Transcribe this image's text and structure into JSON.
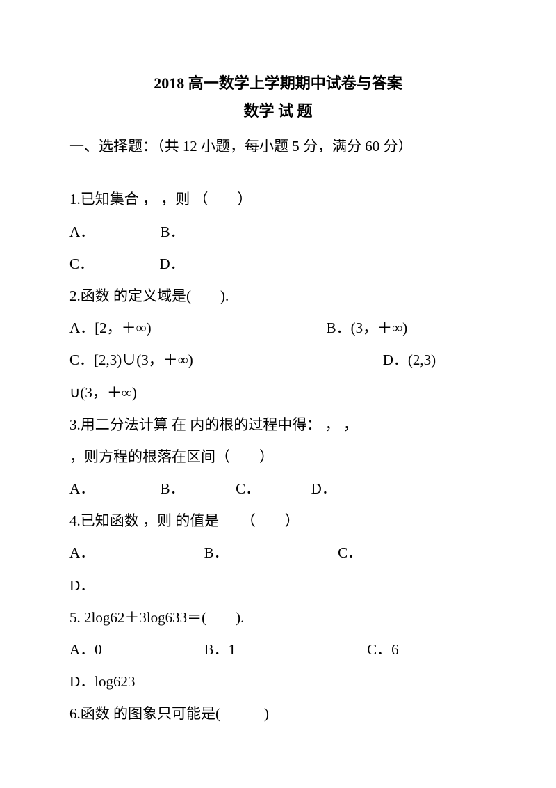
{
  "title": "2018 高一数学上学期期中试卷与答案",
  "subtitle": "数学  试  题",
  "section_header": "一、选择题：（共 12 小题，每小题 5 分，满分 60 分）",
  "q1": {
    "stem": "1.已知集合  ，  ，则  （　　）",
    "line2": "A．　　　　　B．",
    "line3": "  C．　　　　　D．"
  },
  "q2": {
    "stem": "2.函数  的定义域是(　　).",
    "line2": "A．[2，＋∞)　　　　　　　　　　　　B．(3，＋∞)",
    "line3": "C．[2,3)∪(3，＋∞)　　　　　　　　　　　　　D．(2,3)",
    "line4": "∪(3，＋∞)"
  },
  "q3": {
    "stem": "3.用二分法计算  在  内的根的过程中得：  ，  ，",
    "line2": "  ，则方程的根落在区间（　　）",
    "line3": "   A．　　　　　B．　　　　C．　　　　D．"
  },
  "q4": {
    "stem": "4.已知函数  ，则  的值是　　（　　）",
    "line2": "A．　　　　　　　　B．　　　　　　　　C．",
    "line3": "D．"
  },
  "q5": {
    "stem": "5. 2log62＋3log633＝(　　).",
    "line2": "A．0　　　　　　　B．1　　　　　　　　　C．6",
    "line3": "D．log623"
  },
  "q6": {
    "stem": "6.函数  的图象只可能是(　　　)"
  }
}
